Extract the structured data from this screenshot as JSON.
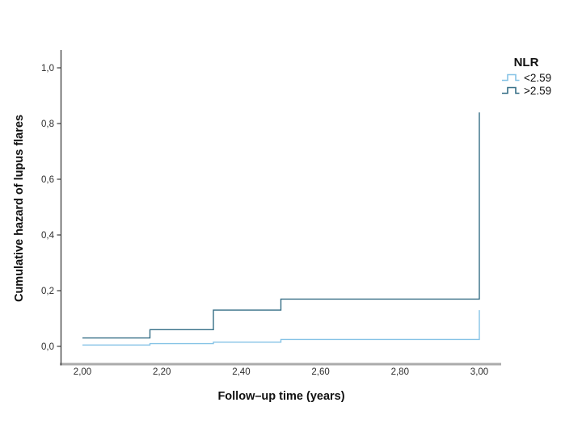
{
  "figure": {
    "background_color": "#ffffff",
    "axis_line_color": "#3a3a3a",
    "x_baseline_color": "#ababab"
  },
  "chart_data": {
    "type": "line",
    "subtype": "step-function-cumulative-hazard",
    "title": "",
    "xlabel": "Follow–up time (years)",
    "ylabel": "Cumulative hazard of lupus flares",
    "xlim": [
      2.0,
      3.0
    ],
    "ylim": [
      0.0,
      1.0
    ],
    "grid": false,
    "x_ticks": [
      {
        "value": 2.0,
        "label": "2,00"
      },
      {
        "value": 2.2,
        "label": "2,20"
      },
      {
        "value": 2.4,
        "label": "2,40"
      },
      {
        "value": 2.6,
        "label": "2,60"
      },
      {
        "value": 2.8,
        "label": "2,80"
      },
      {
        "value": 3.0,
        "label": "3,00"
      }
    ],
    "y_ticks": [
      {
        "value": 0.0,
        "label": "0,0"
      },
      {
        "value": 0.2,
        "label": "0,2"
      },
      {
        "value": 0.4,
        "label": "0,4"
      },
      {
        "value": 0.6,
        "label": "0,6"
      },
      {
        "value": 0.8,
        "label": "0,8"
      },
      {
        "value": 1.0,
        "label": "1,0"
      }
    ],
    "legend": {
      "title": "NLR",
      "position": "top-right"
    },
    "series": [
      {
        "name": "<2.59",
        "color": "#86C3E6",
        "step_points": [
          [
            2.0,
            0.005
          ],
          [
            2.17,
            0.01
          ],
          [
            2.33,
            0.015
          ],
          [
            2.5,
            0.025
          ],
          [
            3.0,
            0.13
          ]
        ]
      },
      {
        "name": ">2.59",
        "color": "#356E86",
        "step_points": [
          [
            2.0,
            0.03
          ],
          [
            2.17,
            0.06
          ],
          [
            2.33,
            0.13
          ],
          [
            2.5,
            0.17
          ],
          [
            3.0,
            0.84
          ]
        ]
      }
    ]
  }
}
